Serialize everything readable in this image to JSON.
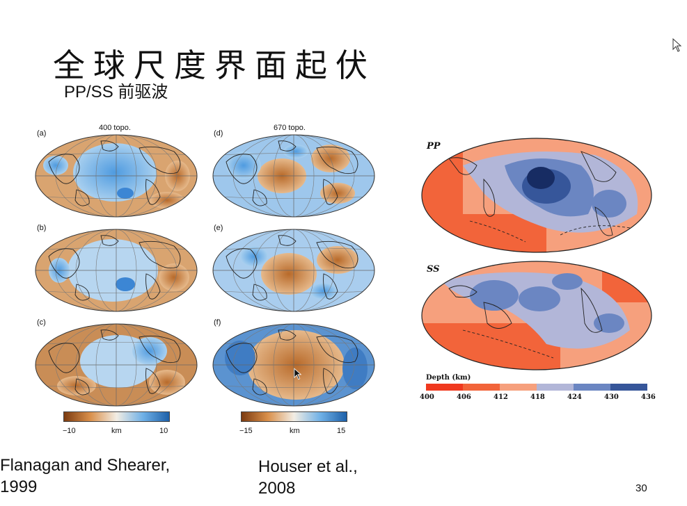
{
  "slide": {
    "title": "全球尺度界面起伏",
    "subtitle": "PP/SS 前驱波",
    "page_number": "30"
  },
  "left_figure": {
    "columns": [
      {
        "title": "400 topo."
      },
      {
        "title": "670 topo."
      }
    ],
    "panels": [
      {
        "label": "(a)"
      },
      {
        "label": "(b)"
      },
      {
        "label": "(c)"
      },
      {
        "label": "(d)"
      },
      {
        "label": "(e)"
      },
      {
        "label": "(f)"
      }
    ],
    "colorbars": [
      {
        "min_label": "−10",
        "unit": "km",
        "max_label": "10"
      },
      {
        "min_label": "−15",
        "unit": "km",
        "max_label": "15"
      }
    ]
  },
  "right_figure": {
    "maps": [
      {
        "label": "PP"
      },
      {
        "label": "SS"
      }
    ],
    "depth_legend": {
      "title": "Depth (km)",
      "ticks": [
        "400",
        "406",
        "412",
        "418",
        "424",
        "430",
        "436"
      ],
      "colors": [
        "#f0391f",
        "#f2643a",
        "#f6a07d",
        "#b2b6d8",
        "#6b86c2",
        "#36569a"
      ]
    }
  },
  "citations": {
    "left": [
      "Flanagan and Shearer,",
      "1999"
    ],
    "right": [
      "Houser et al.,",
      "2008"
    ]
  }
}
